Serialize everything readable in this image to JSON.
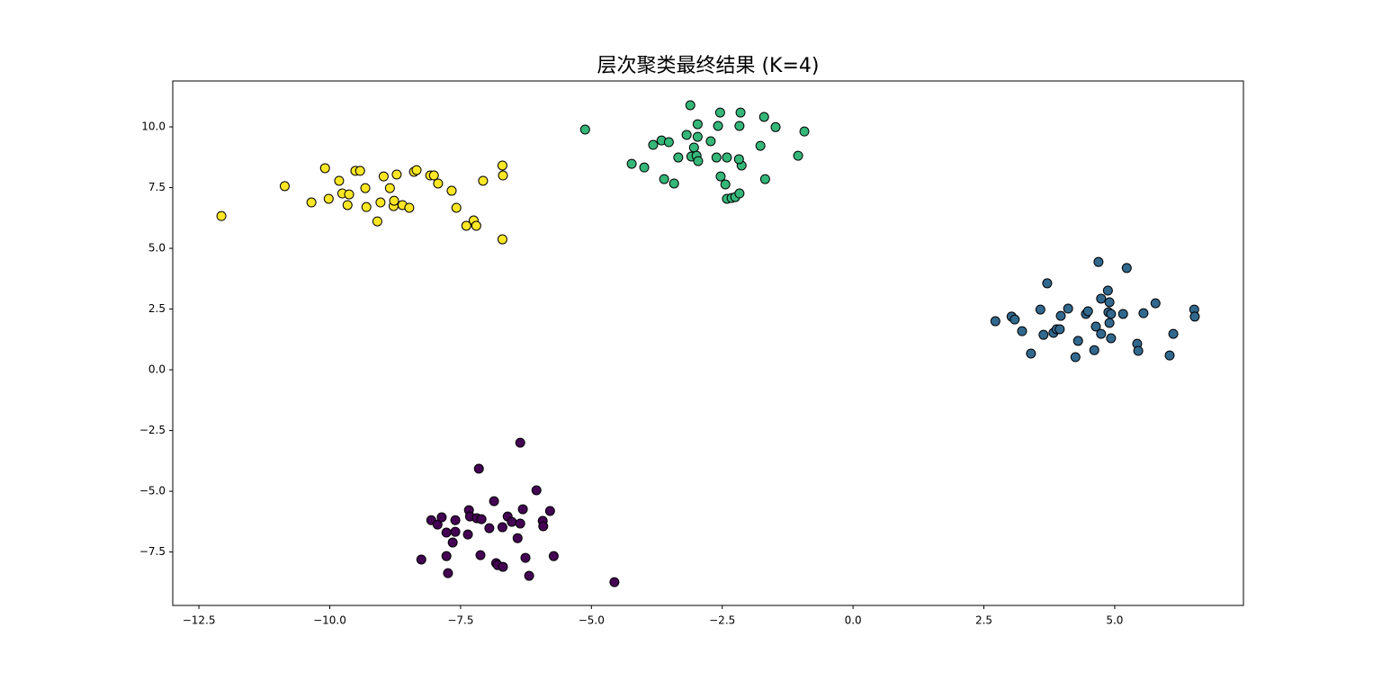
{
  "chart_data": {
    "type": "scatter",
    "title": "层次聚类最终结果 (K=4)",
    "xlim": [
      -13.0,
      7.46
    ],
    "ylim": [
      -9.7,
      11.89
    ],
    "xticks": [
      {
        "value": -12.5,
        "label": "−12.5"
      },
      {
        "value": -10,
        "label": "−10.0"
      },
      {
        "value": -7.5,
        "label": "−7.5"
      },
      {
        "value": -5,
        "label": "−5.0"
      },
      {
        "value": -2.5,
        "label": "−2.5"
      },
      {
        "value": 0,
        "label": "0.0"
      },
      {
        "value": 2.5,
        "label": "2.5"
      },
      {
        "value": 5,
        "label": "5.0"
      }
    ],
    "yticks": [
      {
        "value": -7.5,
        "label": "−7.5"
      },
      {
        "value": -5,
        "label": "−5.0"
      },
      {
        "value": -2.5,
        "label": "−2.5"
      },
      {
        "value": 0,
        "label": "0.0"
      },
      {
        "value": 2.5,
        "label": "2.5"
      },
      {
        "value": 5,
        "label": "5.0"
      },
      {
        "value": 7.5,
        "label": "7.5"
      },
      {
        "value": 10,
        "label": "10.0"
      }
    ],
    "series": [
      {
        "color": "#fde725",
        "x": [
          -12.07,
          -10.86,
          -10.35,
          -10.09,
          -10.02,
          -9.82,
          -9.76,
          -9.66,
          -9.63,
          -9.51,
          -9.42,
          -9.32,
          -9.3,
          -9.09,
          -9.03,
          -8.97,
          -8.85,
          -8.78,
          -8.77,
          -8.72,
          -8.61,
          -8.48,
          -8.39,
          -8.34,
          -8.08,
          -8.01,
          -7.93,
          -7.67,
          -7.58,
          -7.39,
          -7.25,
          -7.2,
          -7.07,
          -6.7,
          -6.69,
          -6.7
        ],
        "y": [
          6.33,
          7.56,
          6.89,
          8.3,
          7.04,
          7.78,
          7.26,
          6.78,
          7.22,
          8.19,
          8.19,
          7.48,
          6.7,
          6.11,
          6.89,
          7.96,
          7.48,
          6.74,
          6.96,
          8.04,
          6.78,
          6.67,
          8.15,
          8.22,
          8.0,
          8.0,
          7.67,
          7.37,
          6.67,
          5.93,
          6.15,
          5.93,
          7.78,
          8.41,
          8.0,
          5.37
        ]
      },
      {
        "color": "#35b779",
        "x": [
          -5.12,
          -4.23,
          -3.99,
          -3.82,
          -3.66,
          -3.61,
          -3.52,
          -3.42,
          -3.34,
          -3.18,
          -3.11,
          -3.09,
          -3.04,
          -2.99,
          -2.97,
          -2.97,
          -2.96,
          -2.72,
          -2.61,
          -2.58,
          -2.54,
          -2.53,
          -2.44,
          -2.41,
          -2.41,
          -2.32,
          -2.25,
          -2.17,
          -2.17,
          -2.15,
          -2.13,
          -2.18,
          -1.77,
          -1.7,
          -1.68,
          -1.48,
          -1.05,
          -0.93
        ],
        "y": [
          9.89,
          8.48,
          8.33,
          9.26,
          9.44,
          7.85,
          9.37,
          7.67,
          8.74,
          9.67,
          10.89,
          8.78,
          9.15,
          8.81,
          9.59,
          10.11,
          8.59,
          9.41,
          8.74,
          10.04,
          10.59,
          7.96,
          7.63,
          8.74,
          7.04,
          7.07,
          7.11,
          7.26,
          10.04,
          10.59,
          8.41,
          8.67,
          9.22,
          10.41,
          7.85,
          9.99,
          8.81,
          9.81
        ]
      },
      {
        "color": "#31688e",
        "x": [
          2.72,
          3.03,
          3.09,
          3.23,
          3.4,
          3.58,
          3.64,
          3.71,
          3.83,
          3.89,
          3.95,
          3.97,
          4.11,
          4.25,
          4.3,
          4.45,
          4.49,
          4.61,
          4.64,
          4.69,
          4.74,
          4.74,
          4.87,
          4.88,
          4.9,
          4.9,
          4.93,
          4.93,
          5.16,
          5.23,
          5.43,
          5.45,
          5.55,
          5.78,
          6.05,
          6.12,
          6.52,
          6.53
        ],
        "y": [
          2.0,
          2.19,
          2.07,
          1.59,
          0.67,
          2.48,
          1.44,
          3.56,
          1.52,
          1.67,
          1.67,
          2.22,
          2.52,
          0.52,
          1.19,
          2.3,
          2.41,
          0.81,
          1.78,
          4.44,
          2.93,
          1.48,
          3.26,
          2.37,
          2.78,
          1.93,
          2.3,
          1.3,
          2.3,
          4.19,
          1.07,
          0.78,
          2.33,
          2.74,
          0.59,
          1.48,
          2.48,
          2.19
        ]
      },
      {
        "color": "#440154",
        "x": [
          -8.25,
          -8.06,
          -7.94,
          -7.86,
          -7.77,
          -7.77,
          -7.74,
          -7.65,
          -7.6,
          -7.6,
          -7.36,
          -7.34,
          -7.32,
          -7.15,
          -7.19,
          -7.1,
          -7.12,
          -6.95,
          -6.86,
          -6.82,
          -6.79,
          -6.69,
          -6.7,
          -6.6,
          -6.52,
          -6.41,
          -6.36,
          -6.36,
          -6.31,
          -6.26,
          -6.19,
          -6.05,
          -5.93,
          -5.92,
          -5.79,
          -5.72,
          -4.56
        ],
        "y": [
          -7.81,
          -6.19,
          -6.37,
          -6.07,
          -6.7,
          -7.67,
          -8.37,
          -7.11,
          -6.19,
          -6.67,
          -6.78,
          -5.78,
          -6.04,
          -4.07,
          -6.11,
          -6.15,
          -7.63,
          -6.52,
          -5.41,
          -7.96,
          -8.04,
          -8.11,
          -6.48,
          -6.04,
          -6.26,
          -6.93,
          -6.33,
          -3.0,
          -5.74,
          -7.74,
          -8.48,
          -4.96,
          -6.22,
          -6.44,
          -5.81,
          -7.67,
          -8.74
        ]
      }
    ]
  }
}
